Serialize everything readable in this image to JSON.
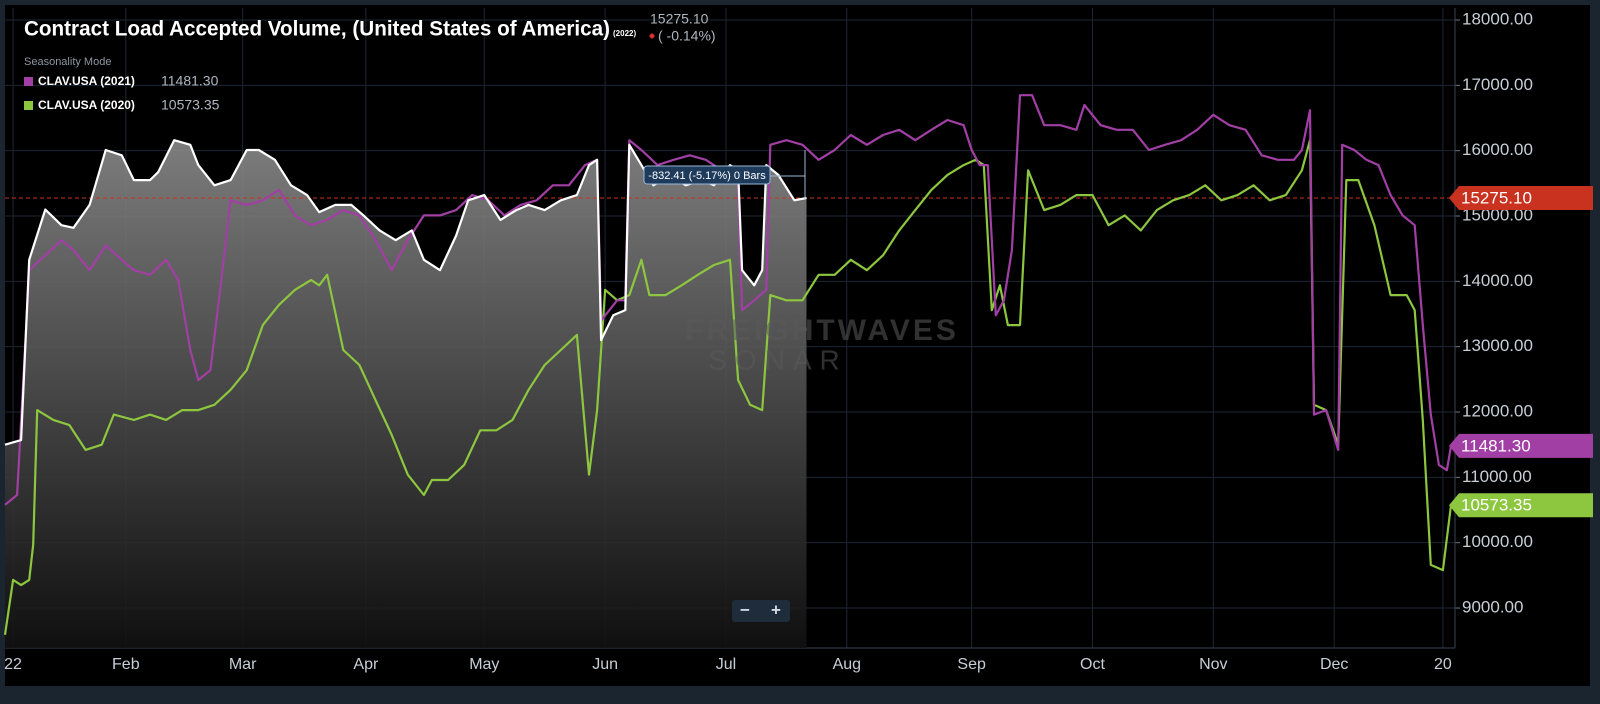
{
  "chart_data": {
    "type": "line",
    "title": "Contract Load Accepted Volume, (United States of America)",
    "subtitle": "Seasonality Mode",
    "current_label": "15275.10",
    "change_label": "( -0.14%)",
    "measure_label": "-832.41 (-5.17%) 0 Bars",
    "watermark": [
      "FREIGHTWAVES",
      "SONAR"
    ],
    "zoom_labels": [
      "−",
      "+"
    ],
    "xlim": [
      0,
      360
    ],
    "xticks": [
      {
        "value": 2,
        "label": "22"
      },
      {
        "value": 30,
        "label": "Feb"
      },
      {
        "value": 59,
        "label": "Mar"
      },
      {
        "value": 89.6,
        "label": "Apr"
      },
      {
        "value": 119,
        "label": "May"
      },
      {
        "value": 149,
        "label": "Jun"
      },
      {
        "value": 179,
        "label": "Jul"
      },
      {
        "value": 209,
        "label": "Aug"
      },
      {
        "value": 240,
        "label": "Sep"
      },
      {
        "value": 270,
        "label": "Oct"
      },
      {
        "value": 300,
        "label": "Nov"
      },
      {
        "value": 330,
        "label": "Dec"
      },
      {
        "value": 357,
        "label": "20"
      }
    ],
    "ylim": [
      8388,
      18184
    ],
    "yticks": [
      {
        "value": 9000,
        "label": "9000.00"
      },
      {
        "value": 10000,
        "label": "10000.00"
      },
      {
        "value": 11000,
        "label": "11000.00"
      },
      {
        "value": 12000,
        "label": "12000.00"
      },
      {
        "value": 13000,
        "label": "13000.00"
      },
      {
        "value": 14000,
        "label": "14000.00"
      },
      {
        "value": 15000,
        "label": "15000.00"
      },
      {
        "value": 16000,
        "label": "16000.00"
      },
      {
        "value": 17000,
        "label": "17000.00"
      },
      {
        "value": 18000,
        "label": "18000.00"
      }
    ],
    "grid": true,
    "reference_line": {
      "value": 15275.1,
      "label": "15275.10",
      "color": "#c8321e"
    },
    "series": [
      {
        "name": "(2022)",
        "color": "#ffffff",
        "area": true,
        "x": [
          0,
          4,
          6,
          10,
          14,
          17,
          21,
          25,
          29,
          32,
          36,
          38,
          42,
          46,
          48,
          52,
          56,
          60,
          63,
          67,
          71,
          75,
          78,
          82,
          86,
          89,
          93,
          97,
          101,
          104,
          108,
          112,
          115,
          119,
          123,
          127,
          130,
          134,
          138,
          142,
          145,
          147,
          148,
          151,
          154,
          155,
          158,
          161,
          165,
          169,
          173,
          176,
          180,
          182,
          183,
          186,
          188,
          189,
          192,
          196,
          199
        ],
        "values": [
          11500,
          11570,
          14330,
          15100,
          14860,
          14820,
          15170,
          16010,
          15930,
          15550,
          15550,
          15670,
          16160,
          16090,
          15780,
          15470,
          15550,
          16010,
          16010,
          15860,
          15470,
          15320,
          15060,
          15170,
          15170,
          15010,
          14780,
          14630,
          14780,
          14330,
          14170,
          14700,
          15240,
          15320,
          14940,
          15090,
          15170,
          15090,
          15240,
          15320,
          15780,
          15860,
          13100,
          13480,
          13560,
          16090,
          15780,
          15470,
          15630,
          15470,
          15550,
          15470,
          15780,
          15700,
          14170,
          13940,
          14170,
          15780,
          15630,
          15240,
          15275.1
        ]
      },
      {
        "name": "CLAV.USA (2021)",
        "color": "#a23fa5",
        "value_label": "11481.30",
        "x": [
          0,
          3,
          6,
          10,
          14,
          17,
          21,
          25,
          29,
          32,
          36,
          40,
          43,
          46,
          48,
          51,
          54,
          56,
          60,
          64,
          68,
          72,
          76,
          80,
          84,
          88,
          92,
          96,
          100,
          104,
          108,
          112,
          116,
          120,
          124,
          128,
          132,
          136,
          140,
          144,
          147,
          148,
          152,
          154,
          155,
          158,
          162,
          166,
          170,
          174,
          178,
          182,
          183,
          186,
          189,
          190,
          194,
          198,
          202,
          206,
          210,
          214,
          218,
          222,
          226,
          230,
          234,
          238,
          240,
          242,
          244,
          246,
          248,
          250,
          252,
          255,
          258,
          262,
          266,
          268,
          272,
          276,
          280,
          284,
          288,
          292,
          296,
          300,
          304,
          308,
          312,
          316,
          320,
          322,
          324,
          325,
          328,
          331,
          332,
          335,
          338,
          341,
          344,
          347,
          350,
          352,
          354,
          356,
          358,
          359
        ],
        "values": [
          10580,
          10730,
          14170,
          14400,
          14630,
          14480,
          14170,
          14550,
          14330,
          14170,
          14100,
          14330,
          14020,
          12950,
          12490,
          12640,
          14170,
          15240,
          15170,
          15240,
          15400,
          15010,
          14860,
          14940,
          15090,
          15010,
          14630,
          14170,
          14630,
          15010,
          15010,
          15090,
          15320,
          15240,
          15010,
          15170,
          15240,
          15470,
          15470,
          15780,
          15860,
          13400,
          13710,
          13710,
          16160,
          16010,
          15780,
          15860,
          15930,
          15860,
          15700,
          15550,
          13560,
          13710,
          13870,
          16090,
          16160,
          16090,
          15860,
          16010,
          16240,
          16090,
          16240,
          16320,
          16160,
          16320,
          16470,
          16390,
          16010,
          15780,
          15780,
          13480,
          13710,
          14480,
          16850,
          16850,
          16390,
          16390,
          16320,
          16700,
          16390,
          16320,
          16320,
          16010,
          16090,
          16160,
          16320,
          16550,
          16390,
          16320,
          15930,
          15860,
          15860,
          16010,
          16620,
          11960,
          12030,
          11420,
          16090,
          16010,
          15860,
          15780,
          15320,
          15010,
          14860,
          13330,
          11960,
          11190,
          11110,
          11481.3
        ]
      },
      {
        "name": "CLAV.USA (2020)",
        "color": "#8dc63f",
        "value_label": "10573.35",
        "x": [
          0,
          2,
          4,
          6,
          7,
          8,
          12,
          16,
          20,
          24,
          27,
          32,
          36,
          40,
          44,
          48,
          52,
          56,
          60,
          64,
          68,
          72,
          76,
          78,
          80,
          84,
          88,
          92,
          96,
          100,
          104,
          106,
          110,
          114,
          118,
          122,
          126,
          130,
          134,
          138,
          142,
          145,
          147,
          149,
          152,
          155,
          158,
          160,
          164,
          168,
          172,
          176,
          180,
          182,
          185,
          188,
          190,
          194,
          198,
          202,
          206,
          210,
          214,
          218,
          222,
          226,
          230,
          234,
          238,
          241,
          243,
          245,
          247,
          249,
          252,
          254,
          258,
          262,
          266,
          270,
          274,
          278,
          282,
          286,
          290,
          294,
          298,
          302,
          306,
          310,
          314,
          318,
          322,
          324,
          325,
          328,
          331,
          333,
          336,
          340,
          344,
          348,
          350,
          352,
          354,
          357,
          359
        ],
        "values": [
          8590,
          9430,
          9350,
          9430,
          9970,
          12030,
          11880,
          11800,
          11420,
          11500,
          11960,
          11880,
          11960,
          11880,
          12030,
          12030,
          12110,
          12340,
          12640,
          13330,
          13640,
          13870,
          14020,
          13940,
          14100,
          12950,
          12720,
          12180,
          11650,
          11040,
          10730,
          10960,
          10960,
          11190,
          11720,
          11720,
          11880,
          12340,
          12720,
          12950,
          13180,
          11040,
          12030,
          13870,
          13710,
          13790,
          14330,
          13790,
          13790,
          13940,
          14100,
          14250,
          14330,
          12490,
          12110,
          12030,
          13790,
          13710,
          13710,
          14100,
          14100,
          14330,
          14170,
          14400,
          14780,
          15090,
          15400,
          15630,
          15780,
          15860,
          15780,
          13560,
          13940,
          13330,
          13330,
          15700,
          15090,
          15170,
          15320,
          15320,
          14860,
          15010,
          14780,
          15090,
          15240,
          15320,
          15470,
          15240,
          15320,
          15470,
          15240,
          15320,
          15700,
          16160,
          12110,
          12030,
          11500,
          15550,
          15550,
          14860,
          13790,
          13790,
          13560,
          11880,
          9660,
          9580,
          10573.35
        ]
      }
    ]
  }
}
